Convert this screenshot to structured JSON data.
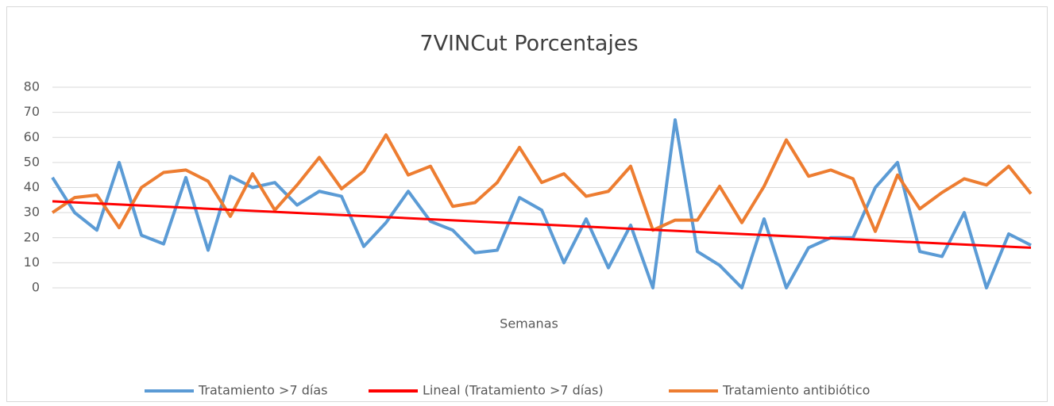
{
  "chart_data": {
    "type": "line",
    "title": "7VINCut Porcentajes",
    "xlabel": "Semanas",
    "categories": [
      null,
      null,
      null,
      null,
      null,
      null,
      null,
      null,
      null,
      null,
      null,
      null,
      null,
      null,
      null,
      null,
      null,
      null,
      null,
      null,
      null,
      null,
      null,
      null,
      null,
      null,
      null,
      null,
      null,
      null,
      null,
      null,
      null,
      null,
      null,
      null,
      null,
      null,
      null,
      null,
      null,
      null,
      null,
      null,
      null
    ],
    "series": [
      {
        "name": "Tratamiento >7 días",
        "color": "#5b9bd5",
        "values": [
          44,
          30,
          23,
          50,
          21,
          17.5,
          44,
          15,
          44.5,
          40,
          42,
          33,
          38.5,
          36.5,
          16.5,
          26,
          38.5,
          26.5,
          23,
          14,
          15,
          36,
          31,
          10,
          27.5,
          8,
          25,
          0,
          67,
          14.5,
          9,
          0,
          27.5,
          0,
          16,
          20,
          20,
          40,
          50,
          14.5,
          12.5,
          30,
          0,
          21.5,
          17
        ]
      },
      {
        "name": "Tratamiento antibiótico",
        "color": "#ed7d31",
        "values": [
          30,
          36,
          37,
          24,
          40,
          46,
          47,
          42.5,
          28.5,
          45.5,
          31,
          41,
          52,
          39.5,
          46.5,
          61,
          45,
          48.5,
          32.5,
          34,
          42,
          56,
          42,
          45.5,
          36.5,
          38.5,
          48.5,
          23,
          27,
          27,
          40.5,
          26,
          40.5,
          59,
          44.5,
          47,
          43.5,
          22.5,
          45,
          31.5,
          38,
          43.5,
          41,
          48.5,
          37.5
        ]
      }
    ],
    "trendline": {
      "name": "Lineal (Tratamiento >7 días)",
      "color": "#ff0000",
      "start": 34.5,
      "end": 16
    },
    "ylim": [
      0,
      80
    ],
    "yticks": [
      0,
      10,
      20,
      30,
      40,
      50,
      60,
      70,
      80
    ],
    "grid": true
  }
}
